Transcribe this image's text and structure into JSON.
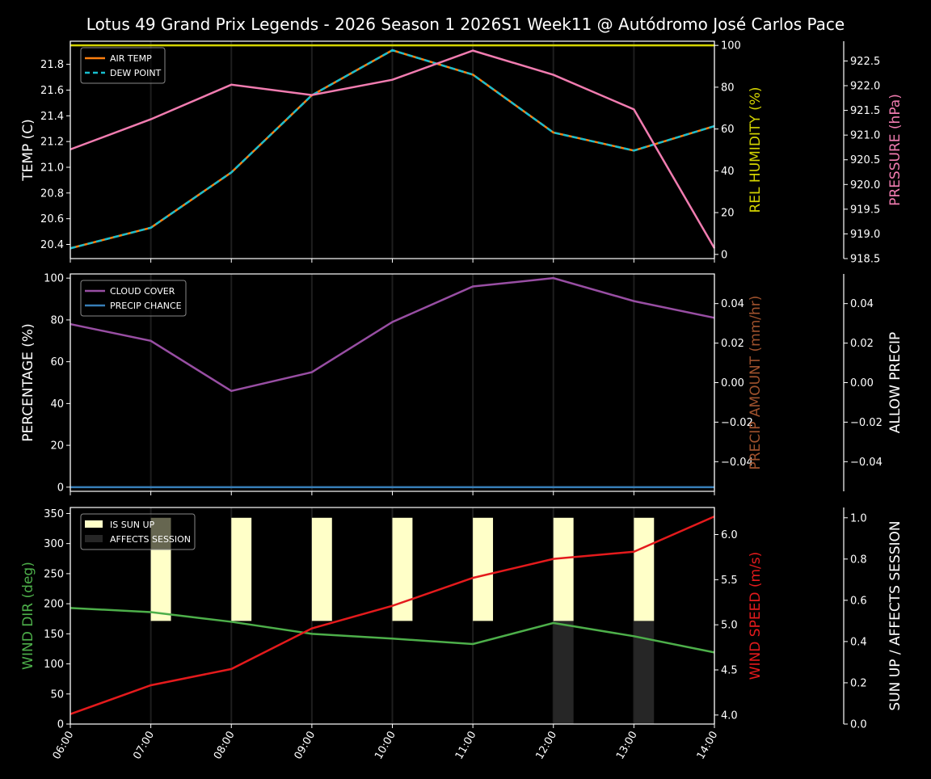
{
  "title": "Lotus 49 Grand Prix Legends - 2026 Season 1 2026S1 Week11 @ Autódromo José Carlos Pace",
  "chart_data": [
    {
      "type": "line",
      "x": [
        "06:00",
        "07:00",
        "08:00",
        "09:00",
        "10:00",
        "11:00",
        "12:00",
        "13:00",
        "14:00"
      ],
      "ylabel": "TEMP (C)",
      "ylabel_right": "REL HUMIDITY (%)",
      "ylabel_right2": "PRESSURE (hPa)",
      "ylim": [
        20.29,
        21.98
      ],
      "ylim_right": [
        -2,
        102
      ],
      "ylim_right2": [
        918.5,
        922.9
      ],
      "yticks": [
        20.4,
        20.6,
        20.8,
        21.0,
        21.2,
        21.4,
        21.6,
        21.8
      ],
      "yticks_right": [
        0,
        20,
        40,
        60,
        80,
        100
      ],
      "yticks_right2": [
        918.5,
        919.0,
        919.5,
        920.0,
        920.5,
        921.0,
        921.5,
        922.0,
        922.5
      ],
      "legend": "top-left",
      "series": [
        {
          "name": "AIR TEMP",
          "axis": "left",
          "color": "#ff7f0e",
          "values": [
            20.37,
            20.53,
            20.96,
            21.56,
            21.91,
            21.72,
            21.27,
            21.13,
            21.32
          ]
        },
        {
          "name": "DEW POINT",
          "axis": "left",
          "color": "#17becf",
          "dashed": true,
          "values": [
            20.37,
            20.53,
            20.96,
            21.56,
            21.91,
            21.72,
            21.27,
            21.13,
            21.32
          ]
        },
        {
          "axis": "right",
          "color": "#d4d400",
          "values": [
            100,
            100,
            100,
            100,
            100,
            100,
            100,
            100,
            100
          ]
        },
        {
          "axis": "right2",
          "color": "#f17cb0",
          "values": [
            920.71,
            921.32,
            922.02,
            921.81,
            922.12,
            922.71,
            922.22,
            921.52,
            918.71
          ]
        }
      ]
    },
    {
      "type": "line",
      "x": [
        "06:00",
        "07:00",
        "08:00",
        "09:00",
        "10:00",
        "11:00",
        "12:00",
        "13:00",
        "14:00"
      ],
      "ylabel": "PERCENTAGE (%)",
      "ylabel_right": "PRECIP AMOUNT (mm/hr)",
      "ylabel_right2": "ALLOW PRECIP",
      "ylim": [
        -2,
        102
      ],
      "ylim_right": [
        -0.055,
        0.055
      ],
      "ylim_right2": [
        -0.055,
        0.055
      ],
      "yticks": [
        0,
        20,
        40,
        60,
        80,
        100
      ],
      "yticks_right": [
        "−0.04",
        "−0.02",
        "0.00",
        "0.02",
        "0.04"
      ],
      "yticks_right2": [
        "−0.04",
        "−0.02",
        "0.00",
        "0.02",
        "0.04"
      ],
      "legend": "top-left",
      "series": [
        {
          "name": "CLOUD COVER",
          "axis": "left",
          "color": "#984ea3",
          "values": [
            78,
            70,
            46,
            55,
            79,
            96,
            100,
            89,
            81
          ]
        },
        {
          "name": "PRECIP CHANCE",
          "axis": "left",
          "color": "#377eb8",
          "values": [
            0,
            0,
            0,
            0,
            0,
            0,
            0,
            0,
            0
          ]
        }
      ]
    },
    {
      "type": "line",
      "x": [
        "06:00",
        "07:00",
        "08:00",
        "09:00",
        "10:00",
        "11:00",
        "12:00",
        "13:00",
        "14:00"
      ],
      "ylabel": "WIND DIR (deg)",
      "ylabel_right": "WIND SPEED (m/s)",
      "ylabel_right2": "SUN UP / AFFECTS SESSION",
      "ylim": [
        0,
        360
      ],
      "ylim_right": [
        3.9,
        6.3
      ],
      "ylim_right2": [
        0,
        1.05
      ],
      "yticks": [
        0,
        50,
        100,
        150,
        200,
        250,
        300,
        350
      ],
      "yticks_right": [
        "4.0",
        "4.5",
        "5.0",
        "5.5",
        "6.0"
      ],
      "yticks_right2": [
        "0.0",
        "0.2",
        "0.4",
        "0.6",
        "0.8",
        "1.0"
      ],
      "legend": "top-left",
      "series": [
        {
          "axis": "left",
          "color": "#4daf4a",
          "values": [
            193,
            186,
            170,
            150,
            142,
            133,
            168,
            146,
            119
          ]
        },
        {
          "axis": "right",
          "color": "#e41a1c",
          "values": [
            4.01,
            4.33,
            4.51,
            4.96,
            5.21,
            5.52,
            5.73,
            5.81,
            6.2
          ]
        }
      ],
      "bars": [
        {
          "name": "IS SUN UP",
          "color": "#ffffc8",
          "values": [
            0,
            1,
            1,
            1,
            1,
            1,
            1,
            1,
            0
          ]
        },
        {
          "name": "AFFECTS SESSION",
          "color": "#262626",
          "values": [
            0,
            0,
            0,
            0,
            0,
            0,
            1,
            1,
            0
          ]
        }
      ]
    }
  ]
}
